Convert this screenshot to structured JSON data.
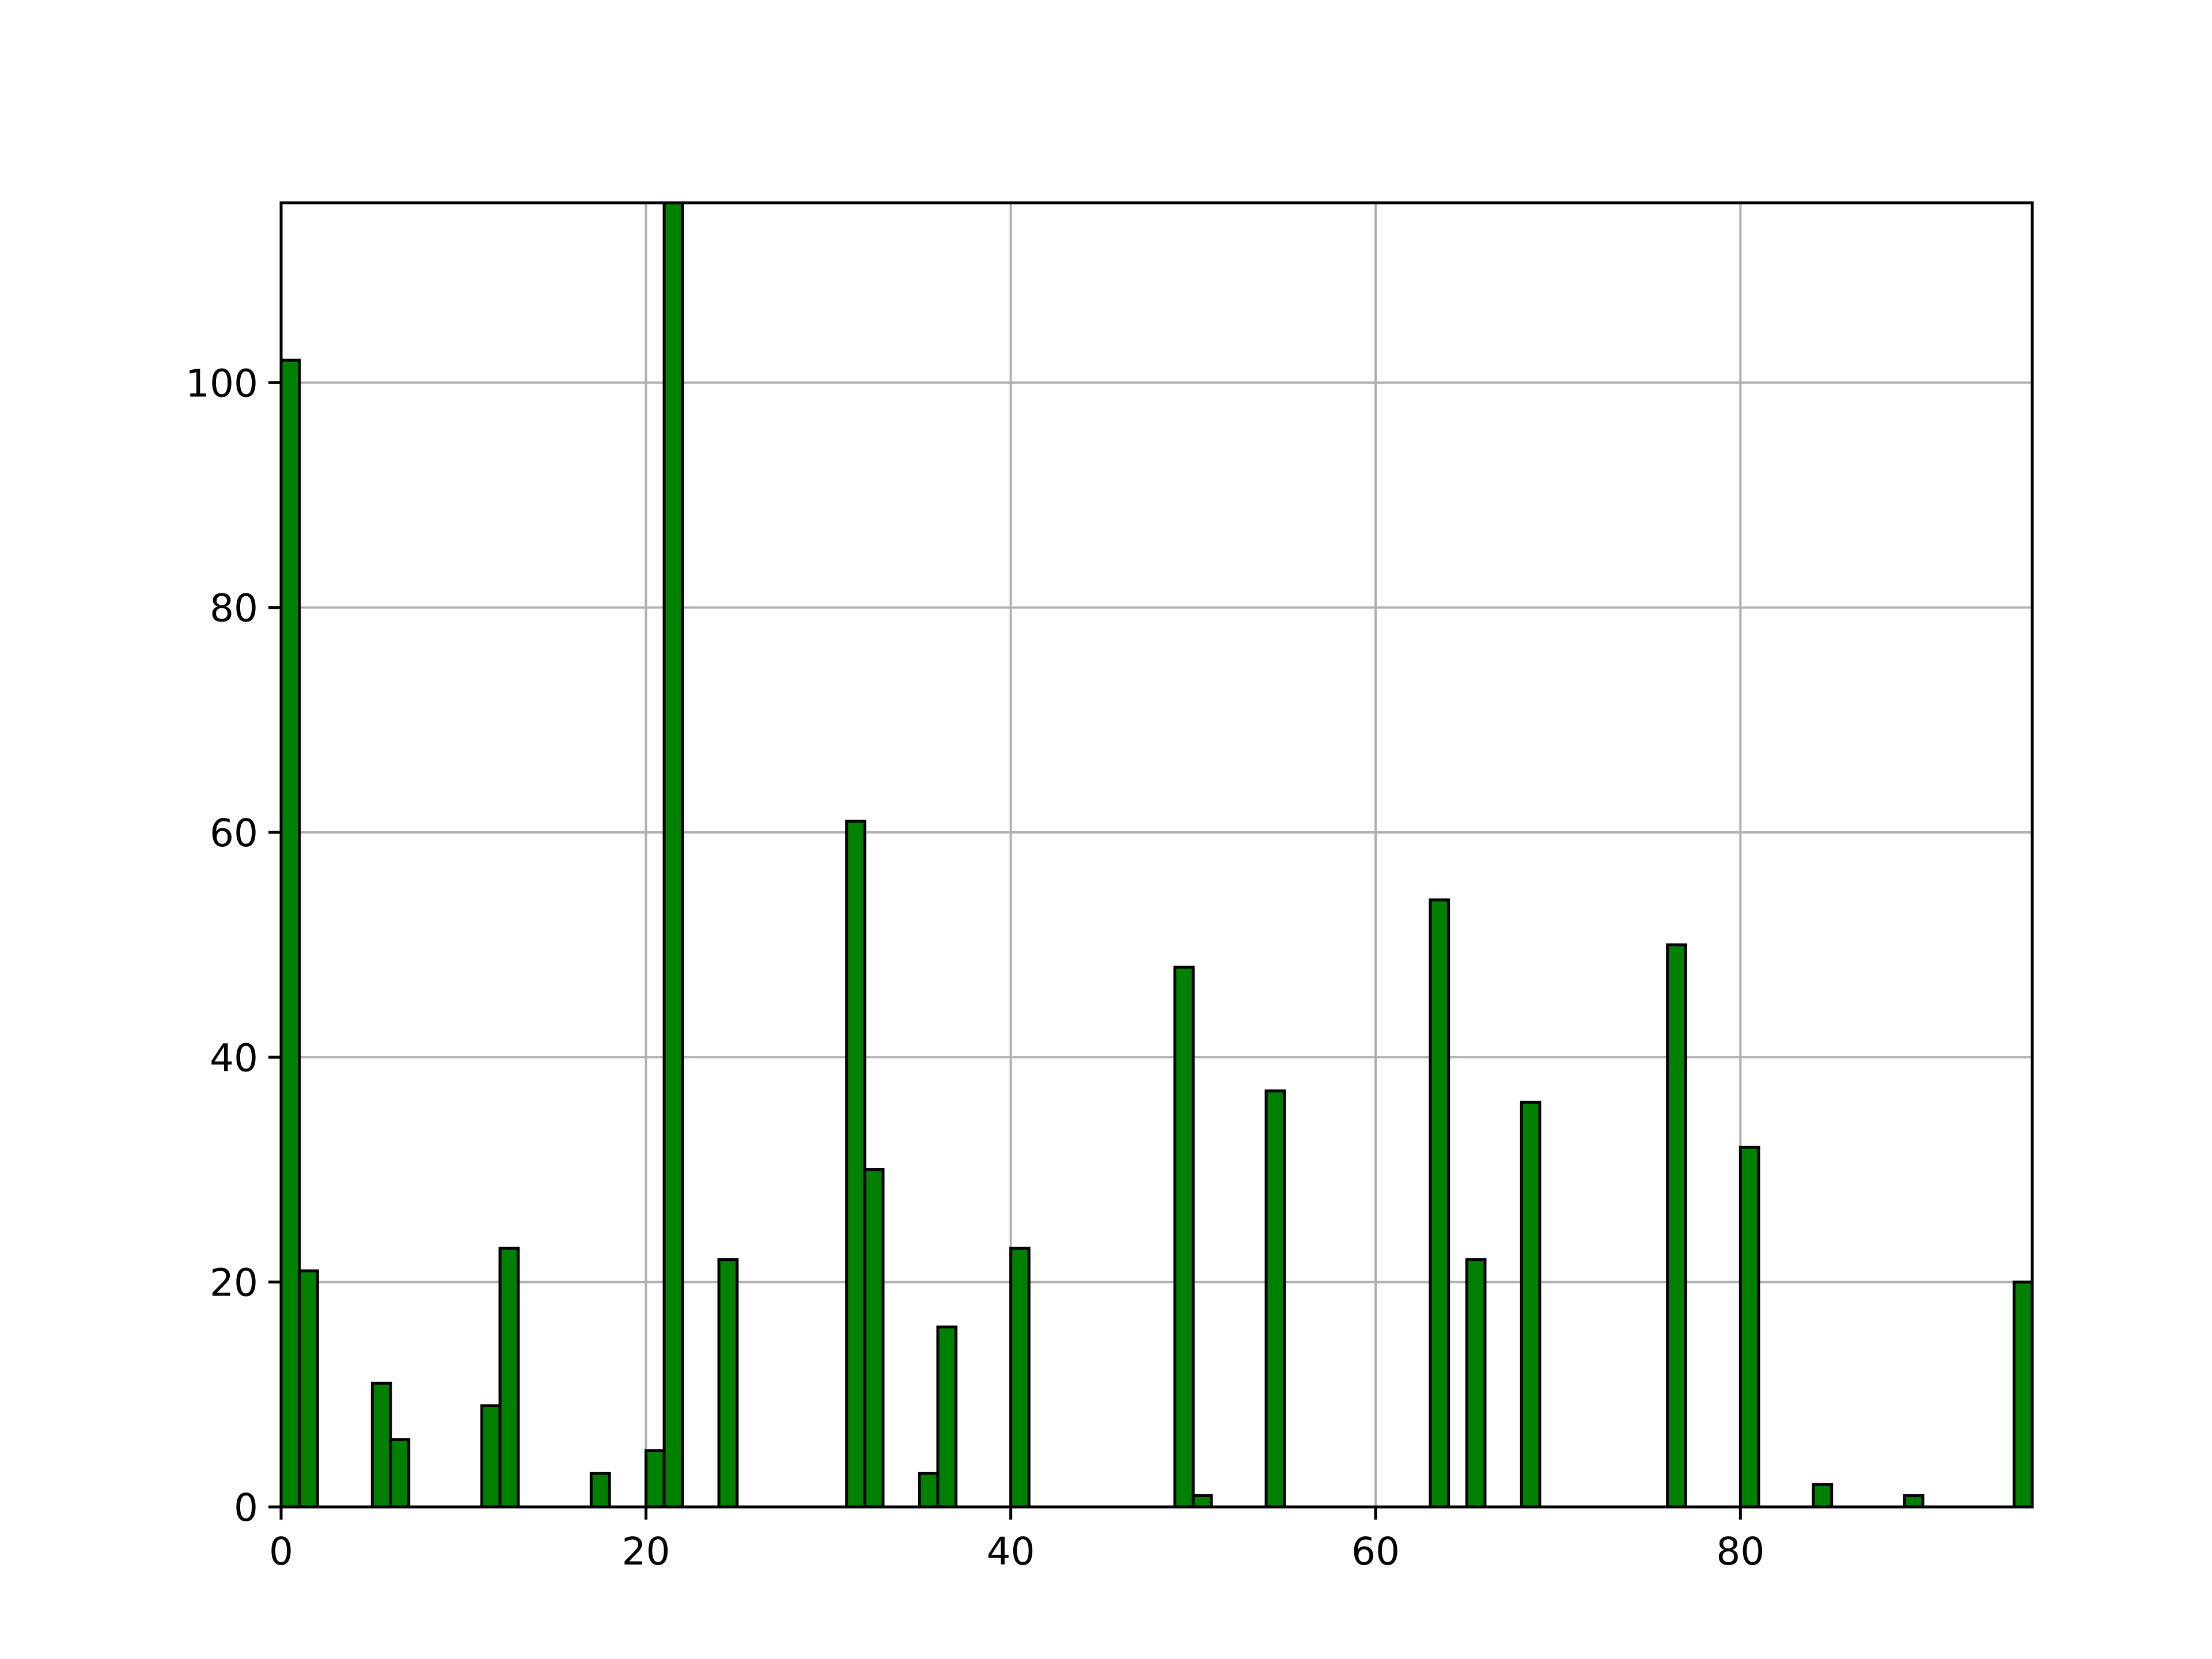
{
  "chart_data": {
    "type": "bar",
    "title": "",
    "xlabel": "",
    "ylabel": "",
    "xlim": [
      0,
      96
    ],
    "ylim": [
      0,
      116
    ],
    "grid": true,
    "bar_width": 1,
    "x": [
      0,
      1,
      5,
      6,
      11,
      12,
      17,
      20,
      21,
      24,
      31,
      32,
      35,
      36,
      40,
      49,
      50,
      54,
      63,
      65,
      68,
      76,
      80,
      84,
      89,
      95
    ],
    "values": [
      102,
      21,
      11,
      6,
      9,
      23,
      3,
      5,
      116,
      22,
      61,
      30,
      3,
      16,
      23,
      48,
      1,
      37,
      54,
      22,
      36,
      50,
      32,
      2,
      1,
      20
    ],
    "colors": {
      "bar": "#008000",
      "edge": "#000000",
      "grid": "#b0b0b0"
    },
    "xticks": [
      0,
      20,
      40,
      60,
      80
    ],
    "xtick_labels": [
      "0",
      "20",
      "40",
      "60",
      "80"
    ],
    "yticks": [
      0,
      20,
      40,
      60,
      80,
      100
    ],
    "ytick_labels": [
      "0",
      "20",
      "40",
      "60",
      "80",
      "100"
    ]
  }
}
